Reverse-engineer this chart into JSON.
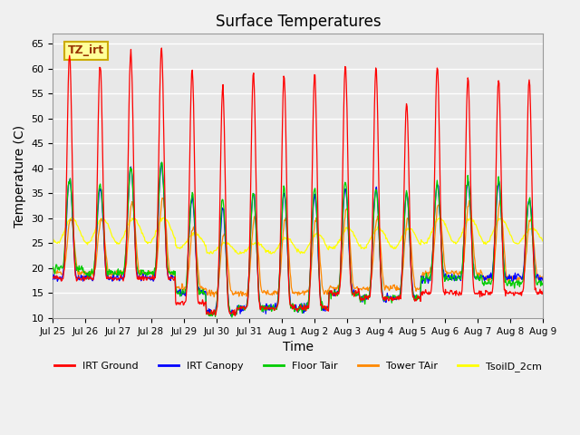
{
  "title": "Surface Temperatures",
  "xlabel": "Time",
  "ylabel": "Temperature (C)",
  "ylim": [
    10,
    67
  ],
  "yticks": [
    10,
    15,
    20,
    25,
    30,
    35,
    40,
    45,
    50,
    55,
    60,
    65
  ],
  "xtick_labels": [
    "Jul 25",
    "Jul 26",
    "Jul 27",
    "Jul 28",
    "Jul 29",
    "Jul 30",
    "Jul 31",
    "Aug 1",
    "Aug 2",
    "Aug 3",
    "Aug 4",
    "Aug 5",
    "Aug 6",
    "Aug 7",
    "Aug 8",
    "Aug 9"
  ],
  "legend_entries": [
    "IRT Ground",
    "IRT Canopy",
    "Floor Tair",
    "Tower TAir",
    "TsoilD_2cm"
  ],
  "legend_colors": [
    "#ff0000",
    "#0000ff",
    "#00cc00",
    "#ff8800",
    "#ffff00"
  ],
  "annotation_text": "TZ_irt",
  "annotation_bg": "#ffff99",
  "annotation_border": "#ccaa00",
  "n_days": 16,
  "pts_per_day": 48,
  "irt_ground_peaks": [
    63,
    61,
    63.5,
    64.5,
    60,
    56.5,
    59,
    58.5,
    59,
    61,
    60.5,
    53,
    60.5,
    58,
    58,
    58
  ],
  "irt_ground_nights": [
    18,
    18,
    18,
    18,
    13,
    11,
    12,
    12,
    12,
    15,
    14,
    14,
    15,
    15,
    15,
    15
  ],
  "canopy_peaks": [
    38,
    36,
    40,
    41,
    34,
    32,
    35,
    35,
    35,
    36,
    36,
    35,
    37,
    37,
    37,
    34
  ],
  "canopy_nights": [
    18,
    18,
    18,
    18,
    15,
    11,
    12,
    12,
    12,
    15,
    14,
    14,
    18,
    18,
    18,
    18
  ],
  "floor_peaks": [
    38,
    37,
    40,
    41,
    35,
    34,
    35,
    36,
    36,
    37,
    36,
    35,
    37,
    38,
    38,
    34
  ],
  "floor_nights": [
    20,
    19,
    19,
    19,
    15,
    11,
    12,
    12,
    12,
    15,
    14,
    14,
    18,
    18,
    17,
    17
  ],
  "tower_peaks": [
    30,
    30,
    33,
    34,
    28,
    27,
    30,
    30,
    30,
    32,
    30,
    30,
    33,
    33,
    33,
    30
  ],
  "tower_nights": [
    19,
    19,
    19,
    19,
    16,
    15,
    15,
    15,
    15,
    16,
    16,
    16,
    19,
    19,
    18,
    18
  ],
  "soil_peaks": [
    30,
    30,
    30,
    30,
    27,
    25,
    25,
    26,
    27,
    28,
    28,
    28,
    30,
    30,
    30,
    28
  ],
  "soil_nights": [
    25,
    25,
    25,
    25,
    24,
    23,
    23,
    23,
    23,
    24,
    24,
    24,
    25,
    25,
    25,
    25
  ]
}
